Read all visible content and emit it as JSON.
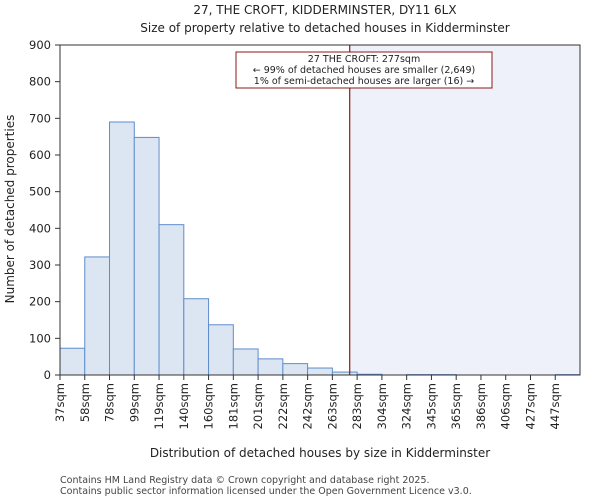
{
  "chart_data": {
    "type": "bar",
    "title": "27, THE CROFT, KIDDERMINSTER, DY11 6LX",
    "subtitle": "Size of property relative to detached houses in Kidderminster",
    "xlabel": "Distribution of detached houses by size in Kidderminster",
    "ylabel": "Number of detached properties",
    "ylim": [
      0,
      900
    ],
    "yticks": [
      0,
      100,
      200,
      300,
      400,
      500,
      600,
      700,
      800,
      900
    ],
    "categories": [
      "37sqm",
      "58sqm",
      "78sqm",
      "99sqm",
      "119sqm",
      "140sqm",
      "160sqm",
      "181sqm",
      "201sqm",
      "222sqm",
      "242sqm",
      "263sqm",
      "283sqm",
      "304sqm",
      "324sqm",
      "345sqm",
      "365sqm",
      "386sqm",
      "406sqm",
      "427sqm",
      "447sqm"
    ],
    "values": [
      73,
      322,
      690,
      648,
      410,
      208,
      137,
      71,
      44,
      31,
      19,
      8,
      2,
      0,
      1,
      1,
      0,
      0,
      0,
      0,
      1
    ],
    "property_marker": {
      "value_sqm": 277,
      "annotation_lines": [
        "27 THE CROFT: 277sqm",
        "← 99% of detached houses are smaller (2,649)",
        "1% of semi-detached houses are larger (16) →"
      ]
    },
    "grid": false,
    "colors": {
      "bar_fill": "#dce6f3",
      "bar_stroke": "#5f8ccc",
      "marker": "#8b1a1a",
      "shade": "#eef1fa",
      "axis": "#333333"
    }
  },
  "footer": {
    "line1": "Contains HM Land Registry data © Crown copyright and database right 2025.",
    "line2": "Contains public sector information licensed under the Open Government Licence v3.0."
  }
}
